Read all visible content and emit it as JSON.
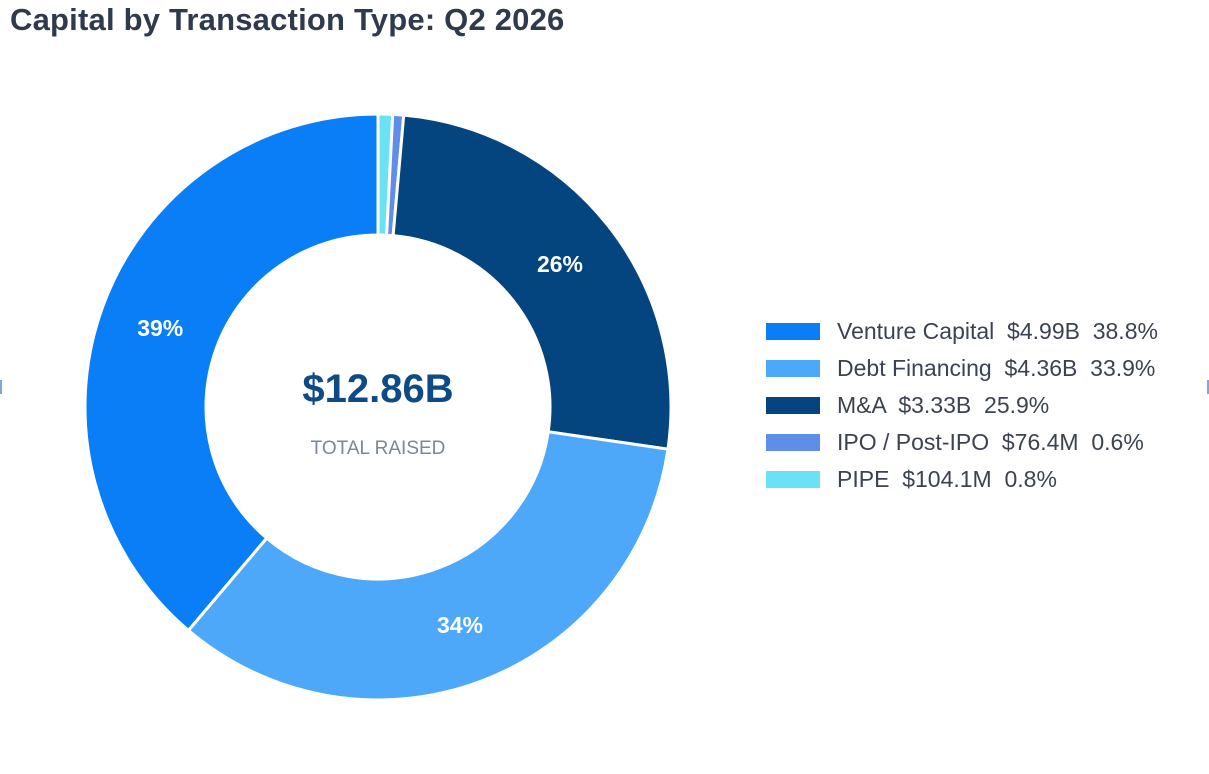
{
  "chart_data": {
    "type": "pie",
    "title": "Capital by Transaction Type: Q2 2026",
    "center_value": "$12.86B",
    "center_label": "TOTAL RAISED",
    "legend_position": "right",
    "slices": [
      {
        "name": "Venture Capital",
        "amount": "$4.99B",
        "percent_label": "38.8%",
        "value": 38.8,
        "slice_label": "39%",
        "color": "#0a7ef6"
      },
      {
        "name": "Debt Financing",
        "amount": "$4.36B",
        "percent_label": "33.9%",
        "value": 33.9,
        "slice_label": "34%",
        "color": "#4da8f9"
      },
      {
        "name": "M&A",
        "amount": "$3.33B",
        "percent_label": "25.9%",
        "value": 25.9,
        "slice_label": "26%",
        "color": "#04447f"
      },
      {
        "name": "IPO / Post-IPO",
        "amount": "$76.4M",
        "percent_label": "0.6%",
        "value": 0.6,
        "slice_label": "",
        "color": "#5e8ee8"
      },
      {
        "name": "PIPE",
        "amount": "$104.1M",
        "percent_label": "0.8%",
        "value": 0.8,
        "slice_label": "",
        "color": "#6be2f4"
      }
    ],
    "draw_order": [
      "PIPE",
      "IPO / Post-IPO",
      "M&A",
      "Debt Financing",
      "Venture Capital"
    ],
    "center_value_color": "#0d4a86",
    "center_label_color": "#7a8796"
  }
}
